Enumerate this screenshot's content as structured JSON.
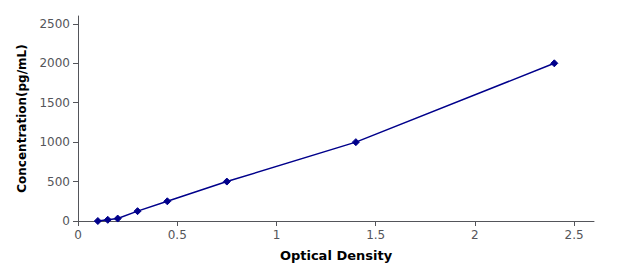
{
  "chart_data": {
    "type": "line",
    "x": [
      0.1,
      0.15,
      0.2,
      0.3,
      0.45,
      0.75,
      1.4,
      2.4
    ],
    "values": [
      0,
      15,
      31,
      125,
      250,
      500,
      1000,
      2000
    ],
    "color": "#00008B",
    "marker": "diamond",
    "xlabel": "Optical Density",
    "ylabel": "Concentration(pg/mL)",
    "xlim": [
      0,
      2.6
    ],
    "ylim": [
      0,
      2600
    ],
    "xticks": [
      0,
      0.5,
      1,
      1.5,
      2,
      2.5
    ],
    "yticks": [
      0,
      500,
      1000,
      1500,
      2000,
      2500
    ],
    "grid": false
  }
}
